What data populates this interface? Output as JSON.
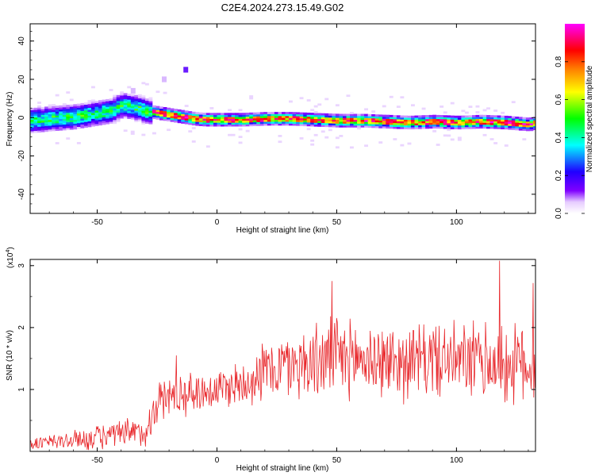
{
  "title": "C2E4.2024.273.15.49.G02",
  "chart_data": [
    {
      "type": "heatmap",
      "xlabel": "Height of straight line (km)",
      "ylabel": "Frequency (Hz)",
      "xlim": [
        -78,
        133
      ],
      "ylim": [
        -50,
        49
      ],
      "xticks": [
        -50,
        0,
        50,
        100
      ],
      "yticks": [
        -40,
        -20,
        0,
        20,
        40
      ],
      "colorbar": {
        "label": "Normalized spectral amplitude",
        "range": [
          0,
          1
        ],
        "ticks": [
          "0.0",
          "0.2",
          "0.4",
          "0.6",
          "0.8"
        ],
        "colors": [
          "#ffffff",
          "#7f00ff",
          "#0000ff",
          "#00ffff",
          "#00ff00",
          "#ffff00",
          "#ff7f00",
          "#ff0000",
          "#ff00ff"
        ]
      },
      "ridge": {
        "x": [
          -78,
          -70,
          -60,
          -50,
          -45,
          -40,
          -35,
          -30,
          -25,
          -20,
          -15,
          -10,
          -5,
          0,
          10,
          20,
          30,
          40,
          50,
          60,
          70,
          80,
          90,
          100,
          110,
          120,
          125,
          130,
          133
        ],
        "y": [
          -2,
          -1,
          0,
          2,
          3,
          6,
          5,
          3,
          2,
          1,
          0,
          -1,
          -1.5,
          -1.5,
          -1.5,
          -1,
          -1,
          -1.5,
          -2,
          -2,
          -2.5,
          -3,
          -2.5,
          -3,
          -2.5,
          -3,
          -3.5,
          -4,
          -3
        ]
      },
      "outliers": [
        {
          "x": -13,
          "y": 25
        },
        {
          "x": -35,
          "y": 14
        },
        {
          "x": -22,
          "y": 20
        }
      ]
    },
    {
      "type": "line",
      "xlabel": "Height of straight line (km)",
      "ylabel": "SNR (10 * v/v)",
      "multiplier_label": "(x10",
      "multiplier_exp": "4",
      "multiplier_close": ")",
      "xlim": [
        -78,
        133
      ],
      "ylim": [
        0,
        3.1
      ],
      "xticks": [
        -50,
        0,
        50,
        100
      ],
      "yticks": [
        1,
        2,
        3
      ],
      "line_color": "#e8262a",
      "envelope": {
        "x": [
          -78,
          -60,
          -45,
          -30,
          -25,
          -20,
          -10,
          0,
          10,
          20,
          30,
          40,
          50,
          60,
          70,
          80,
          90,
          100,
          110,
          120,
          133
        ],
        "mean": [
          0.12,
          0.18,
          0.25,
          0.3,
          0.8,
          0.9,
          0.95,
          1.0,
          1.1,
          1.3,
          1.4,
          1.45,
          1.5,
          1.5,
          1.45,
          1.45,
          1.5,
          1.45,
          1.45,
          1.4,
          1.4
        ],
        "amplitude": [
          0.1,
          0.15,
          0.2,
          0.25,
          0.3,
          0.35,
          0.3,
          0.3,
          0.35,
          0.45,
          0.5,
          0.55,
          0.6,
          0.55,
          0.55,
          0.55,
          0.55,
          0.55,
          0.6,
          0.6,
          0.6
        ]
      },
      "peaks": [
        {
          "x": 48,
          "y": 2.75
        },
        {
          "x": 118,
          "y": 3.08
        },
        {
          "x": 132,
          "y": 2.72
        },
        {
          "x": -17,
          "y": 1.55
        }
      ]
    }
  ]
}
